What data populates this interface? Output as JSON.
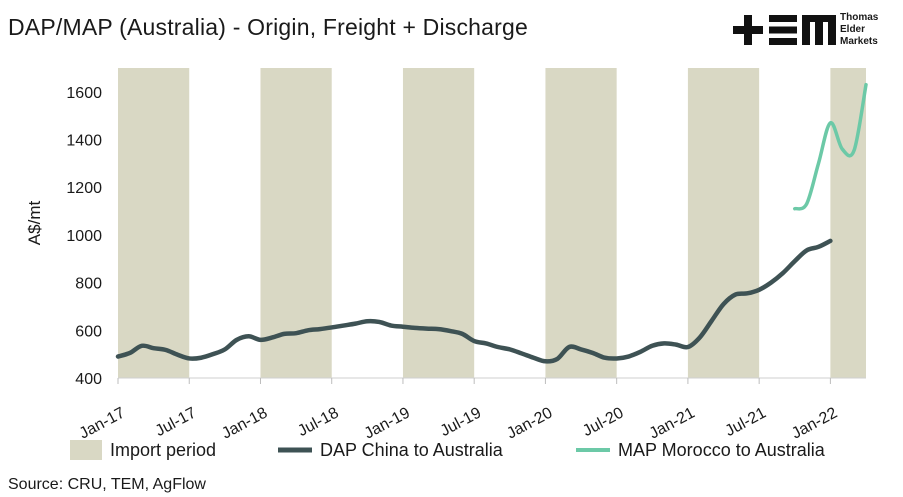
{
  "title": "DAP/MAP (Australia) - Origin, Freight + Discharge",
  "brand": {
    "name_lines": [
      "Thomas",
      "Elder",
      "Markets"
    ],
    "mark": "+EM"
  },
  "source": "Source: CRU, TEM, AgFlow",
  "colors": {
    "shade": "#d9d8c4",
    "dap": "#3e5254",
    "map": "#6cc9a7"
  },
  "chart_data": {
    "type": "line",
    "title": "DAP/MAP (Australia) - Origin, Freight + Discharge",
    "xlabel": "",
    "ylabel": "A$/mt",
    "ylim": [
      400,
      1700
    ],
    "yticks": [
      400,
      600,
      800,
      1000,
      1200,
      1400,
      1600
    ],
    "xticks": [
      "Jan-17",
      "Jul-17",
      "Jan-18",
      "Jul-18",
      "Jan-19",
      "Jul-19",
      "Jan-20",
      "Jul-20",
      "Jan-21",
      "Jul-21",
      "Jan-22"
    ],
    "x_unit_note": "x values are months since Jan-17",
    "shaded_periods": {
      "name": "Import period",
      "ranges": [
        [
          "Jan-17",
          "Jul-17"
        ],
        [
          "Jan-18",
          "Jul-18"
        ],
        [
          "Jan-19",
          "Jul-19"
        ],
        [
          "Jan-20",
          "Jul-20"
        ],
        [
          "Jan-21",
          "Jul-21"
        ],
        [
          "Jan-22",
          "Apr-22"
        ]
      ]
    },
    "series": [
      {
        "name": "DAP China to Australia",
        "points": [
          [
            "Jan-17",
            490
          ],
          [
            "Feb-17",
            505
          ],
          [
            "Mar-17",
            535
          ],
          [
            "Apr-17",
            525
          ],
          [
            "May-17",
            518
          ],
          [
            "Jun-17",
            498
          ],
          [
            "Jul-17",
            482
          ],
          [
            "Aug-17",
            485
          ],
          [
            "Sep-17",
            500
          ],
          [
            "Oct-17",
            520
          ],
          [
            "Nov-17",
            560
          ],
          [
            "Dec-17",
            575
          ],
          [
            "Jan-18",
            560
          ],
          [
            "Feb-18",
            570
          ],
          [
            "Mar-18",
            585
          ],
          [
            "Apr-18",
            588
          ],
          [
            "May-18",
            600
          ],
          [
            "Jun-18",
            605
          ],
          [
            "Jul-18",
            612
          ],
          [
            "Aug-18",
            620
          ],
          [
            "Sep-18",
            628
          ],
          [
            "Oct-18",
            638
          ],
          [
            "Nov-18",
            635
          ],
          [
            "Dec-18",
            620
          ],
          [
            "Jan-19",
            615
          ],
          [
            "Feb-19",
            610
          ],
          [
            "Mar-19",
            607
          ],
          [
            "Apr-19",
            605
          ],
          [
            "May-19",
            597
          ],
          [
            "Jun-19",
            585
          ],
          [
            "Jul-19",
            555
          ],
          [
            "Aug-19",
            545
          ],
          [
            "Sep-19",
            530
          ],
          [
            "Oct-19",
            520
          ],
          [
            "Nov-19",
            503
          ],
          [
            "Dec-19",
            485
          ],
          [
            "Jan-20",
            470
          ],
          [
            "Feb-20",
            480
          ],
          [
            "Mar-20",
            530
          ],
          [
            "Apr-20",
            520
          ],
          [
            "May-20",
            505
          ],
          [
            "Jun-20",
            485
          ],
          [
            "Jul-20",
            482
          ],
          [
            "Aug-20",
            490
          ],
          [
            "Sep-20",
            510
          ],
          [
            "Oct-20",
            535
          ],
          [
            "Nov-20",
            545
          ],
          [
            "Dec-20",
            540
          ],
          [
            "Jan-21",
            530
          ],
          [
            "Feb-21",
            570
          ],
          [
            "Mar-21",
            640
          ],
          [
            "Apr-21",
            710
          ],
          [
            "May-21",
            750
          ],
          [
            "Jun-21",
            755
          ],
          [
            "Jul-21",
            770
          ],
          [
            "Aug-21",
            800
          ],
          [
            "Sep-21",
            840
          ],
          [
            "Oct-21",
            890
          ],
          [
            "Nov-21",
            935
          ],
          [
            "Dec-21",
            950
          ],
          [
            "Jan-22",
            975
          ]
        ]
      },
      {
        "name": "MAP Morocco to Australia",
        "points": [
          [
            "Oct-21",
            1110
          ],
          [
            "Nov-21",
            1130
          ],
          [
            "Dec-21",
            1300
          ],
          [
            "Jan-22",
            1470
          ],
          [
            "Feb-22",
            1360
          ],
          [
            "Mar-22",
            1355
          ],
          [
            "Apr-22",
            1630
          ]
        ]
      }
    ],
    "legend": "bottom",
    "grid": false
  }
}
